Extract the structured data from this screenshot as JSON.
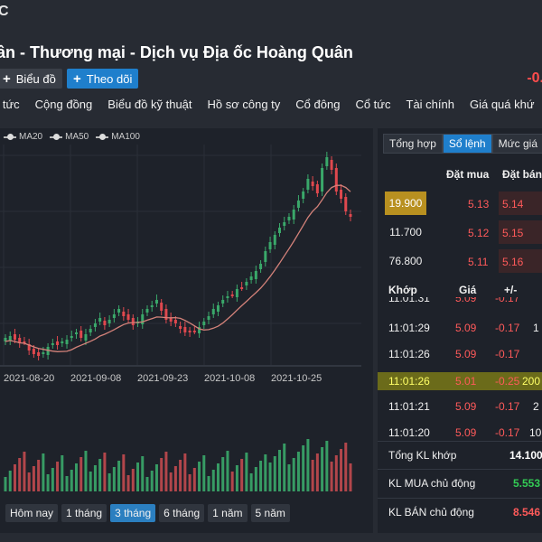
{
  "header": {
    "code": "C",
    "company_name": "ần - Thương mại - Dịch vụ Địa ốc Hoàng Quân",
    "chart_button": "Biểu đồ",
    "follow_button": "Theo dõi",
    "change": "-0."
  },
  "nav": [
    "n tức",
    "Cộng đồng",
    "Biểu đồ kỹ thuật",
    "Hồ sơ công ty",
    "Cổ đông",
    "Cổ tức",
    "Tài chính",
    "Giá quá khứ"
  ],
  "legend": [
    "MA20",
    "MA50",
    "MA100"
  ],
  "ranges": [
    {
      "label": "Hôm nay",
      "active": false
    },
    {
      "label": "1 tháng",
      "active": false
    },
    {
      "label": "3 tháng",
      "active": true
    },
    {
      "label": "6 tháng",
      "active": false
    },
    {
      "label": "1 năm",
      "active": false
    },
    {
      "label": "5 năm",
      "active": false
    }
  ],
  "right_tabs": [
    {
      "label": "Tổng hợp",
      "active": false
    },
    {
      "label": "Sổ lệnh",
      "active": true
    },
    {
      "label": "Mức giá",
      "active": false
    }
  ],
  "order_book": {
    "header_buy": "Đặt mua",
    "header_sell": "Đặt bán",
    "rows": [
      {
        "volume": "19.900",
        "buy": "5.13",
        "sell": "5.14"
      },
      {
        "volume": "11.700",
        "buy": "5.12",
        "sell": "5.15"
      },
      {
        "volume": "76.800",
        "buy": "5.11",
        "sell": "5.16"
      }
    ]
  },
  "matched": {
    "headers": {
      "time": "Khớp",
      "price": "Giá",
      "change": "+/-"
    },
    "rows": [
      {
        "time": "11:01:31",
        "price": "5.09",
        "change": "-0.17",
        "volume": ""
      },
      {
        "time": "11:01:29",
        "price": "5.09",
        "change": "-0.17",
        "volume": "1"
      },
      {
        "time": "11:01:26",
        "price": "5.09",
        "change": "-0.17",
        "volume": ""
      },
      {
        "time": "11:01:26",
        "price": "5.01",
        "change": "-0.25",
        "volume": "200"
      },
      {
        "time": "11:01:21",
        "price": "5.09",
        "change": "-0.17",
        "volume": "2"
      },
      {
        "time": "11:01:20",
        "price": "5.09",
        "change": "-0.17",
        "volume": "10"
      }
    ]
  },
  "summary": [
    {
      "label": "Tổng KL khớp",
      "value": "14.100",
      "color": "#ffffff"
    },
    {
      "label": "KL MUA chủ động",
      "value": "5.553",
      "color": "#33cc55"
    },
    {
      "label": "KL BÁN chủ động",
      "value": "8.546",
      "color": "#ff5a5a"
    }
  ],
  "chart_data": {
    "type": "candlestick",
    "x_ticks": [
      "2021-08-20",
      "2021-09-08",
      "2021-09-23",
      "2021-10-08",
      "2021-10-25"
    ],
    "colors": {
      "up": "#3aa86a",
      "down": "#e0484e",
      "ma": "#d4827a"
    }
  }
}
